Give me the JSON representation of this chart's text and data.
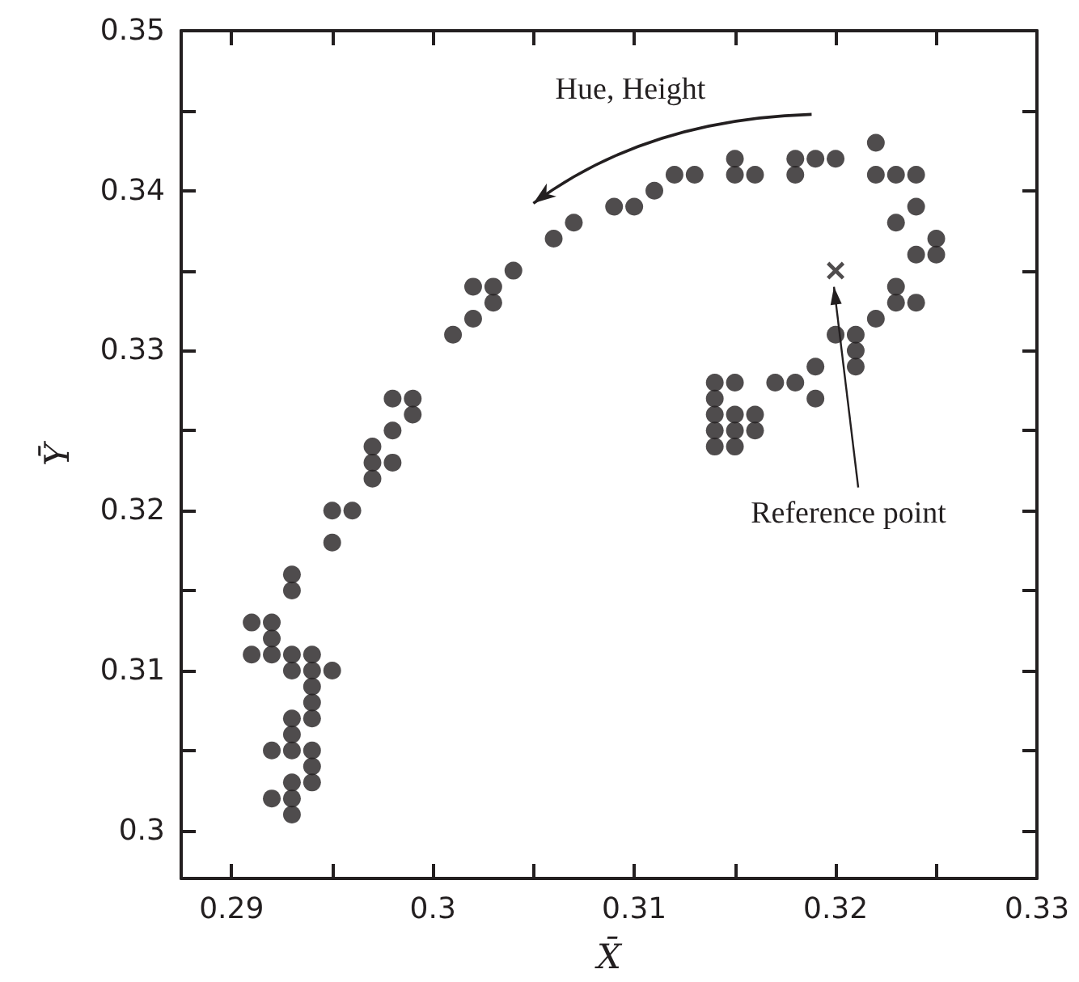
{
  "chart_data": {
    "type": "scatter",
    "xlabel": "X̄",
    "ylabel": "Ȳ",
    "xlim": [
      0.2875,
      0.33
    ],
    "ylim": [
      0.297,
      0.35
    ],
    "xticks": [
      0.29,
      {
        "value": 0.295,
        "label": null
      },
      0.3,
      {
        "value": 0.305,
        "label": null
      },
      0.31,
      {
        "value": 0.315,
        "label": null
      },
      0.32,
      {
        "value": 0.325,
        "label": null
      },
      0.33
    ],
    "yticks": [
      0.3,
      {
        "value": 0.305,
        "label": null
      },
      0.31,
      {
        "value": 0.315,
        "label": null
      },
      0.32,
      {
        "value": 0.325,
        "label": null
      },
      0.33,
      {
        "value": 0.335,
        "label": null
      },
      0.34,
      {
        "value": 0.345,
        "label": null
      },
      0.35
    ],
    "annotations": [
      "Hue, Height",
      "Reference point"
    ],
    "series": [
      {
        "marker": "circle",
        "color": "#231f20",
        "x": [
          0.295,
          0.293,
          0.293,
          0.291,
          0.292,
          0.292,
          0.291,
          0.292,
          0.293,
          0.294,
          0.293,
          0.294,
          0.295,
          0.294,
          0.294,
          0.293,
          0.294,
          0.293,
          0.292,
          0.293,
          0.294,
          0.294,
          0.293,
          0.294,
          0.292,
          0.293,
          0.293,
          0.295,
          0.296,
          0.297,
          0.297,
          0.297,
          0.298,
          0.298,
          0.298,
          0.299,
          0.299,
          0.301,
          0.302,
          0.303,
          0.302,
          0.303,
          0.304,
          0.306,
          0.307,
          0.309,
          0.31,
          0.311,
          0.312,
          0.313,
          0.315,
          0.315,
          0.316,
          0.318,
          0.318,
          0.319,
          0.32,
          0.322,
          0.322,
          0.323,
          0.324,
          0.324,
          0.323,
          0.325,
          0.324,
          0.325,
          0.323,
          0.323,
          0.324,
          0.322,
          0.32,
          0.321,
          0.321,
          0.321,
          0.319,
          0.314,
          0.315,
          0.317,
          0.318,
          0.319,
          0.314,
          0.314,
          0.315,
          0.316,
          0.314,
          0.315,
          0.316,
          0.314,
          0.315
        ],
        "values": [
          0.318,
          0.316,
          0.315,
          0.313,
          0.313,
          0.312,
          0.311,
          0.311,
          0.311,
          0.311,
          0.31,
          0.31,
          0.31,
          0.309,
          0.308,
          0.307,
          0.307,
          0.306,
          0.305,
          0.305,
          0.305,
          0.304,
          0.303,
          0.303,
          0.302,
          0.302,
          0.301,
          0.32,
          0.32,
          0.324,
          0.323,
          0.322,
          0.325,
          0.323,
          0.327,
          0.327,
          0.326,
          0.331,
          0.332,
          0.333,
          0.334,
          0.334,
          0.335,
          0.337,
          0.338,
          0.339,
          0.339,
          0.34,
          0.341,
          0.341,
          0.342,
          0.341,
          0.341,
          0.342,
          0.341,
          0.342,
          0.342,
          0.343,
          0.341,
          0.341,
          0.341,
          0.339,
          0.338,
          0.337,
          0.336,
          0.336,
          0.334,
          0.333,
          0.333,
          0.332,
          0.331,
          0.331,
          0.33,
          0.329,
          0.329,
          0.328,
          0.328,
          0.328,
          0.328,
          0.327,
          0.327,
          0.326,
          0.326,
          0.326,
          0.325,
          0.325,
          0.325,
          0.324,
          0.324
        ]
      },
      {
        "marker": "cross",
        "color": "#231f20",
        "x": [
          0.32
        ],
        "values": [
          0.335
        ]
      }
    ]
  }
}
